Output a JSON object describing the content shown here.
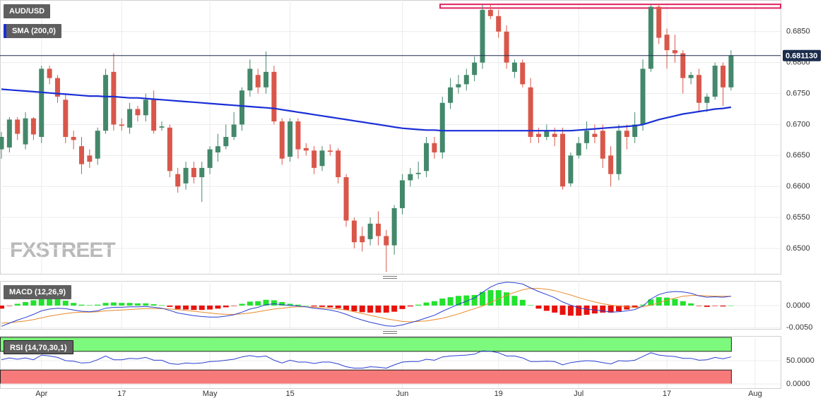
{
  "chart_data": {
    "type": "candlestick",
    "title": "AUD/USD",
    "watermark": "FXSTREET",
    "categories": [
      null,
      null,
      null,
      null,
      null,
      "Apr",
      null,
      null,
      null,
      null,
      null,
      null,
      null,
      null,
      null,
      "17",
      null,
      null,
      null,
      null,
      null,
      null,
      null,
      null,
      null,
      null,
      "May",
      null,
      null,
      null,
      null,
      null,
      null,
      null,
      null,
      null,
      "15",
      null,
      null,
      null,
      null,
      null,
      null,
      null,
      null,
      null,
      null,
      null,
      null,
      null,
      "Jun",
      null,
      null,
      null,
      null,
      null,
      null,
      null,
      null,
      null,
      null,
      null,
      "19",
      null,
      null,
      null,
      null,
      null,
      null,
      null,
      null,
      null,
      "Jul",
      null,
      null,
      null,
      null,
      null,
      null,
      null,
      null,
      null,
      null,
      "17",
      null,
      null,
      null,
      null,
      null,
      null,
      null,
      null,
      null,
      null,
      "Aug"
    ],
    "open": [
      0.666,
      0.6663,
      0.6708,
      0.6668,
      0.671,
      0.668,
      0.679,
      0.6775,
      0.674,
      0.668,
      0.6665,
      0.665,
      0.6645,
      0.669,
      0.6785,
      0.67,
      0.6695,
      0.6725,
      0.6715,
      0.674,
      0.6695,
      0.6695,
      0.662,
      0.6605,
      0.663,
      0.6615,
      0.663,
      0.6655,
      0.6665,
      0.668,
      0.67,
      0.6755,
      0.678,
      0.676,
      0.6785,
      0.6705,
      0.6648,
      0.6705,
      0.6662,
      0.6658,
      0.6633,
      0.6658,
      0.6658,
      0.6615,
      0.6545,
      0.652,
      0.6515,
      0.654,
      0.652,
      0.6505,
      0.6565,
      0.661,
      0.662,
      0.6625,
      0.667,
      0.6655,
      0.6735,
      0.676,
      0.6765,
      0.678,
      0.68,
      0.6885,
      0.6875,
      0.685,
      0.6785,
      0.68,
      0.676,
      0.6685,
      0.668,
      0.6685,
      0.6685,
      0.6605,
      0.665,
      0.667,
      0.6685,
      0.669,
      0.665,
      0.662,
      0.669,
      0.668,
      0.67,
      0.679,
      0.689,
      0.6845,
      0.682,
      0.6815,
      0.6775,
      0.678,
      0.6735,
      0.6745,
      0.6795,
      0.676,
      null,
      null,
      null
    ],
    "high": [
      0.6688,
      0.6712,
      0.6712,
      0.672,
      0.6712,
      0.6795,
      0.6795,
      0.678,
      0.675,
      0.669,
      0.668,
      0.666,
      0.6695,
      0.679,
      0.6815,
      0.671,
      0.6735,
      0.673,
      0.675,
      0.6755,
      0.6705,
      0.67,
      0.663,
      0.664,
      0.664,
      0.664,
      0.6665,
      0.6685,
      0.67,
      0.672,
      0.676,
      0.6805,
      0.679,
      0.6818,
      0.6795,
      0.671,
      0.671,
      0.671,
      0.667,
      0.6665,
      0.6665,
      0.6668,
      0.6662,
      0.662,
      0.655,
      0.6535,
      0.655,
      0.656,
      0.653,
      0.657,
      0.662,
      0.663,
      0.664,
      0.668,
      0.668,
      0.6745,
      0.6775,
      0.678,
      0.679,
      0.681,
      0.6893,
      0.6893,
      0.6885,
      0.686,
      0.6805,
      0.6805,
      0.6775,
      0.6695,
      0.67,
      0.6695,
      0.6695,
      0.6655,
      0.668,
      0.6705,
      0.67,
      0.67,
      0.6665,
      0.67,
      0.67,
      0.672,
      0.6805,
      0.6893,
      0.6895,
      0.6855,
      0.6845,
      0.682,
      0.6785,
      0.679,
      0.675,
      0.68,
      0.68,
      0.682,
      null,
      null,
      null
    ],
    "low": [
      0.6645,
      0.6655,
      0.6675,
      0.666,
      0.6675,
      0.667,
      0.6765,
      0.6735,
      0.667,
      0.666,
      0.662,
      0.663,
      0.6635,
      0.6685,
      0.669,
      0.669,
      0.6685,
      0.6705,
      0.6705,
      0.6685,
      0.669,
      0.6615,
      0.659,
      0.6595,
      0.6605,
      0.6575,
      0.662,
      0.664,
      0.666,
      0.6675,
      0.669,
      0.6745,
      0.675,
      0.675,
      0.67,
      0.6635,
      0.664,
      0.6645,
      0.665,
      0.662,
      0.6625,
      0.665,
      0.6605,
      0.6535,
      0.65,
      0.6495,
      0.6505,
      0.6505,
      0.6462,
      0.649,
      0.6555,
      0.66,
      0.6612,
      0.6615,
      0.6645,
      0.6645,
      0.6725,
      0.675,
      0.6755,
      0.677,
      0.679,
      0.687,
      0.684,
      0.679,
      0.6775,
      0.676,
      0.667,
      0.667,
      0.6675,
      0.6665,
      0.6595,
      0.66,
      0.6645,
      0.666,
      0.667,
      0.663,
      0.66,
      0.661,
      0.666,
      0.667,
      0.669,
      0.6785,
      0.683,
      0.679,
      0.68,
      0.675,
      0.6765,
      0.672,
      0.672,
      0.674,
      0.673,
      0.6755,
      null,
      null,
      null
    ],
    "close": [
      0.668,
      0.6708,
      0.6685,
      0.671,
      0.6684,
      0.679,
      0.6775,
      0.6745,
      0.668,
      0.6675,
      0.6636,
      0.664,
      0.669,
      0.678,
      0.67,
      0.6698,
      0.6725,
      0.6715,
      0.674,
      0.669,
      0.6697,
      0.6625,
      0.66,
      0.663,
      0.6615,
      0.663,
      0.666,
      0.6665,
      0.668,
      0.67,
      0.6755,
      0.679,
      0.676,
      0.6785,
      0.6705,
      0.6645,
      0.6705,
      0.666,
      0.6658,
      0.663,
      0.6658,
      0.6656,
      0.6615,
      0.6545,
      0.651,
      0.651,
      0.654,
      0.652,
      0.6505,
      0.6565,
      0.661,
      0.662,
      0.6622,
      0.667,
      0.6655,
      0.6735,
      0.676,
      0.6765,
      0.678,
      0.68,
      0.6885,
      0.6875,
      0.685,
      0.68,
      0.68,
      0.6765,
      0.668,
      0.668,
      0.669,
      0.668,
      0.66,
      0.665,
      0.667,
      0.669,
      0.668,
      0.6645,
      0.662,
      0.669,
      0.668,
      0.67,
      0.679,
      0.689,
      0.684,
      0.682,
      0.6815,
      0.6775,
      0.678,
      0.6735,
      0.6745,
      0.6795,
      0.676,
      0.6811,
      null,
      null,
      null
    ],
    "up_color": "#44886b",
    "down_color": "#d9574a",
    "ylim": [
      0.6459,
      0.6901
    ],
    "yticks": [
      {
        "value": 0.65,
        "label": "0.6500"
      },
      {
        "value": 0.655,
        "label": "0.6550"
      },
      {
        "value": 0.66,
        "label": "0.6600"
      },
      {
        "value": 0.665,
        "label": "0.6650"
      },
      {
        "value": 0.67,
        "label": "0.6700"
      },
      {
        "value": 0.675,
        "label": "0.6750"
      },
      {
        "value": 0.68,
        "label": "0.6800"
      },
      {
        "value": 0.685,
        "label": "0.6850"
      }
    ],
    "grid": true,
    "last_price": {
      "value": 0.68113,
      "label": "0.681130",
      "color": "#1c2c4c"
    },
    "resistance_band": [
      0.6888,
      0.6894
    ],
    "resistance_color": "#e0245e",
    "sma": {
      "name": "SMA (200,0)",
      "color": "#1a2fd6",
      "values": [
        0.6757,
        0.6756,
        0.6755,
        0.6754,
        0.6753,
        0.6752,
        0.6751,
        0.675,
        0.6749,
        0.6748,
        0.6747,
        0.6746,
        0.6746,
        0.6745,
        0.6745,
        0.6744,
        0.6743,
        0.6743,
        0.6742,
        0.6741,
        0.674,
        0.6739,
        0.6738,
        0.6737,
        0.6736,
        0.6735,
        0.6734,
        0.6733,
        0.6732,
        0.6731,
        0.673,
        0.6729,
        0.6728,
        0.6727,
        0.6726,
        0.6724,
        0.6722,
        0.672,
        0.6718,
        0.6716,
        0.6714,
        0.6712,
        0.671,
        0.6708,
        0.6706,
        0.6704,
        0.6702,
        0.67,
        0.6698,
        0.6696,
        0.6694,
        0.6693,
        0.6692,
        0.6691,
        0.6691,
        0.669,
        0.669,
        0.669,
        0.669,
        0.669,
        0.669,
        0.669,
        0.669,
        0.669,
        0.669,
        0.669,
        0.669,
        0.669,
        0.669,
        0.669,
        0.669,
        0.669,
        0.6691,
        0.6692,
        0.6693,
        0.6694,
        0.6695,
        0.6696,
        0.6697,
        0.6698,
        0.67,
        0.6704,
        0.6708,
        0.6711,
        0.6714,
        0.6717,
        0.6719,
        0.6721,
        0.6723,
        0.6725,
        0.6726,
        0.6728,
        null,
        null,
        null
      ]
    },
    "macd": {
      "name": "MACD (12,26,9)",
      "ylim": [
        -0.0053,
        0.0056
      ],
      "yticks": [
        {
          "value": 0,
          "label": "0.0000"
        },
        {
          "value": -0.005,
          "label": "-0.0050"
        }
      ],
      "macd_line": {
        "color": "#2a3fd0",
        "values": [
          -0.0047,
          -0.004,
          -0.0033,
          -0.0027,
          -0.002,
          -0.0012,
          -0.0008,
          -0.0006,
          -0.0007,
          -0.001,
          -0.0013,
          -0.0014,
          -0.0012,
          -0.0006,
          -0.0004,
          -0.0004,
          -0.0003,
          -0.0003,
          -0.0002,
          -0.0004,
          -0.0006,
          -0.0011,
          -0.0017,
          -0.002,
          -0.0023,
          -0.0025,
          -0.0026,
          -0.0026,
          -0.0024,
          -0.0021,
          -0.0015,
          -0.0008,
          -0.0004,
          0.0002,
          0.0004,
          0.0002,
          0.0,
          -0.0001,
          -0.0003,
          -0.0006,
          -0.0008,
          -0.001,
          -0.0014,
          -0.002,
          -0.0027,
          -0.0033,
          -0.0038,
          -0.0042,
          -0.0046,
          -0.0047,
          -0.0044,
          -0.0039,
          -0.0034,
          -0.0028,
          -0.0022,
          -0.0013,
          -0.0005,
          0.0003,
          0.001,
          0.0017,
          0.003,
          0.0042,
          0.005,
          0.0053,
          0.0052,
          0.0049,
          0.004,
          0.0032,
          0.0025,
          0.0018,
          0.0008,
          0.0001,
          -0.0005,
          -0.0008,
          -0.001,
          -0.0012,
          -0.0015,
          -0.0014,
          -0.0012,
          -0.0009,
          -0.0001,
          0.0015,
          0.0025,
          0.003,
          0.0032,
          0.0031,
          0.0028,
          0.0022,
          0.0019,
          0.002,
          0.0019,
          0.0021,
          null,
          null,
          null
        ]
      },
      "signal_line": {
        "color": "#e88b2a",
        "values": [
          -0.004,
          -0.0039,
          -0.0037,
          -0.0035,
          -0.0032,
          -0.0028,
          -0.0024,
          -0.0021,
          -0.0018,
          -0.0016,
          -0.0015,
          -0.0015,
          -0.0014,
          -0.0012,
          -0.0011,
          -0.001,
          -0.0009,
          -0.0008,
          -0.0007,
          -0.0007,
          -0.0007,
          -0.0008,
          -0.0009,
          -0.0011,
          -0.0013,
          -0.0015,
          -0.0017,
          -0.0019,
          -0.002,
          -0.002,
          -0.0019,
          -0.0017,
          -0.0014,
          -0.0011,
          -0.0008,
          -0.0006,
          -0.0004,
          -0.0003,
          -0.0003,
          -0.0004,
          -0.0005,
          -0.0006,
          -0.0008,
          -0.001,
          -0.0014,
          -0.0018,
          -0.0022,
          -0.0026,
          -0.003,
          -0.0033,
          -0.0036,
          -0.0037,
          -0.0036,
          -0.0035,
          -0.0032,
          -0.0029,
          -0.0024,
          -0.0019,
          -0.0013,
          -0.0007,
          -0.0001,
          0.0007,
          0.0015,
          0.0023,
          0.003,
          0.0036,
          0.0039,
          0.0039,
          0.0037,
          0.0034,
          0.0029,
          0.0024,
          0.0018,
          0.0013,
          0.0008,
          0.0004,
          0.0001,
          -0.0001,
          -0.0003,
          -0.0004,
          -0.0003,
          0.0001,
          0.0006,
          0.0012,
          0.0017,
          0.0021,
          0.0023,
          0.0023,
          0.0022,
          0.0021,
          0.0021,
          0.0021,
          null,
          null,
          null
        ]
      },
      "histogram": {
        "up_color": "#22e22e",
        "down_color": "#e8120c",
        "values": [
          -0.0007,
          -0.0001,
          0.0004,
          0.0008,
          0.0012,
          0.0016,
          0.0016,
          0.0015,
          0.0011,
          0.0006,
          0.0002,
          0.0001,
          0.0002,
          0.0006,
          0.0007,
          0.0006,
          0.0006,
          0.0005,
          0.0005,
          0.0003,
          0.0001,
          -0.0003,
          -0.0008,
          -0.0009,
          -0.001,
          -0.001,
          -0.0009,
          -0.0007,
          -0.0004,
          -0.0001,
          0.0004,
          0.0009,
          0.001,
          0.0013,
          0.0012,
          0.0008,
          0.0004,
          0.0002,
          0.0,
          -0.0002,
          -0.0003,
          -0.0004,
          -0.0006,
          -0.001,
          -0.0013,
          -0.0015,
          -0.0016,
          -0.0016,
          -0.0016,
          -0.0014,
          -0.0008,
          -0.0002,
          0.0002,
          0.0007,
          0.001,
          0.0016,
          0.0019,
          0.0022,
          0.0023,
          0.0024,
          0.0031,
          0.0035,
          0.0035,
          0.003,
          0.0022,
          0.0013,
          0.0001,
          -0.0007,
          -0.0012,
          -0.0016,
          -0.0021,
          -0.0023,
          -0.0023,
          -0.0021,
          -0.0018,
          -0.0016,
          -0.0016,
          -0.0013,
          -0.0009,
          -0.0005,
          0.0002,
          0.0014,
          0.0019,
          0.0018,
          0.0015,
          0.001,
          0.0005,
          -0.0001,
          -0.0003,
          -0.0001,
          -0.0002,
          0.0,
          null,
          null,
          null
        ]
      }
    },
    "rsi": {
      "name": "RSI (14,70,30,1)",
      "color": "#2a3fd0",
      "ylim": [
        -9,
        103
      ],
      "yticks": [
        {
          "value": 50,
          "label": "50.0000"
        },
        {
          "value": 0,
          "label": "0.0000"
        }
      ],
      "overbought_zone": [
        70,
        100
      ],
      "overbought_color": "#7dfa7d",
      "oversold_zone": [
        0,
        30
      ],
      "oversold_color": "#f77a7a",
      "values": [
        52,
        56,
        53,
        56,
        52,
        62,
        60,
        57,
        50,
        49,
        45,
        46,
        52,
        60,
        52,
        52,
        55,
        54,
        57,
        51,
        51,
        44,
        42,
        45,
        44,
        45,
        48,
        49,
        51,
        53,
        58,
        61,
        58,
        60,
        51,
        45,
        51,
        47,
        47,
        44,
        47,
        47,
        43,
        37,
        34,
        34,
        37,
        36,
        34,
        41,
        47,
        48,
        48,
        53,
        51,
        58,
        60,
        61,
        62,
        64,
        71,
        70,
        67,
        60,
        60,
        56,
        48,
        48,
        49,
        48,
        41,
        46,
        48,
        50,
        49,
        46,
        43,
        50,
        49,
        51,
        59,
        67,
        62,
        60,
        59,
        55,
        55,
        51,
        52,
        57,
        54,
        58,
        null,
        null,
        null
      ]
    }
  }
}
